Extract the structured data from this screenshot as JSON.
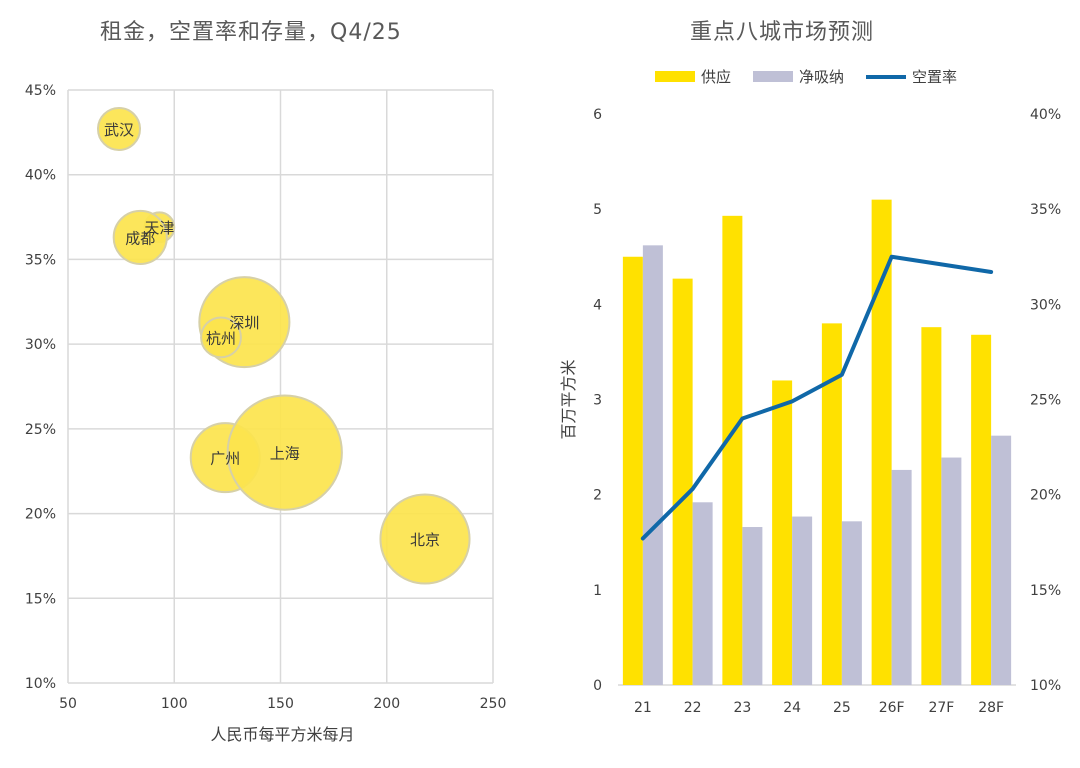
{
  "left_chart": {
    "title": "租金，空置率和存量，Q4/25"
  },
  "right_chart": {
    "title": "重点八城市场预测"
  },
  "colors": {
    "bubble_fill": "#FCE44D",
    "bubble_stroke": "#D6D0A8",
    "supply": "#FFE100",
    "absorption": "#BFC0D6",
    "vacancy": "#1068A8",
    "grid": "#D9D9D9"
  },
  "chart_data": [
    {
      "type": "scatter",
      "title": "租金，空置率和存量，Q4/25",
      "xlabel": "人民币每平方米每月",
      "ylabel": "",
      "xlim": [
        50,
        250
      ],
      "ylim": [
        10,
        45
      ],
      "x_ticks": [
        "50",
        "100",
        "150",
        "200",
        "250"
      ],
      "y_ticks": [
        "10%",
        "15%",
        "20%",
        "25%",
        "30%",
        "35%",
        "40%",
        "45%"
      ],
      "points": [
        {
          "label": "武汉",
          "x": 74,
          "y": 42.7,
          "size": 1.0
        },
        {
          "label": "天津",
          "x": 93,
          "y": 36.9,
          "size": 0.5
        },
        {
          "label": "成都",
          "x": 84,
          "y": 36.3,
          "size": 1.6
        },
        {
          "label": "深圳",
          "x": 133,
          "y": 31.3,
          "size": 4.6
        },
        {
          "label": "杭州",
          "x": 122,
          "y": 30.4,
          "size": 0.9
        },
        {
          "label": "广州",
          "x": 124,
          "y": 23.3,
          "size": 2.7
        },
        {
          "label": "上海",
          "x": 152,
          "y": 23.6,
          "size": 7.4
        },
        {
          "label": "北京",
          "x": 218,
          "y": 18.5,
          "size": 4.5
        }
      ]
    },
    {
      "type": "bar",
      "title": "重点八城市场预测",
      "categories": [
        "21",
        "22",
        "23",
        "24",
        "25",
        "26F",
        "27F",
        "28F"
      ],
      "ylabel": "百万平方米",
      "ylim": [
        0,
        6
      ],
      "y_ticks": [
        "0",
        "1",
        "2",
        "3",
        "4",
        "5",
        "6"
      ],
      "y2lim": [
        10,
        40
      ],
      "y2_ticks": [
        "10%",
        "15%",
        "20%",
        "25%",
        "30%",
        "35%",
        "40%"
      ],
      "legend_position": "top",
      "series": [
        {
          "name": "供应",
          "type": "bar",
          "values": [
            4.5,
            4.27,
            4.93,
            3.2,
            3.8,
            5.1,
            3.76,
            3.68
          ]
        },
        {
          "name": "净吸纳",
          "type": "bar",
          "values": [
            4.62,
            1.92,
            1.66,
            1.77,
            1.72,
            2.26,
            2.39,
            2.62
          ]
        },
        {
          "name": "空置率",
          "type": "line",
          "axis": "right",
          "values": [
            17.7,
            20.3,
            24.0,
            24.9,
            26.3,
            32.5,
            32.1,
            31.7
          ]
        }
      ]
    }
  ]
}
